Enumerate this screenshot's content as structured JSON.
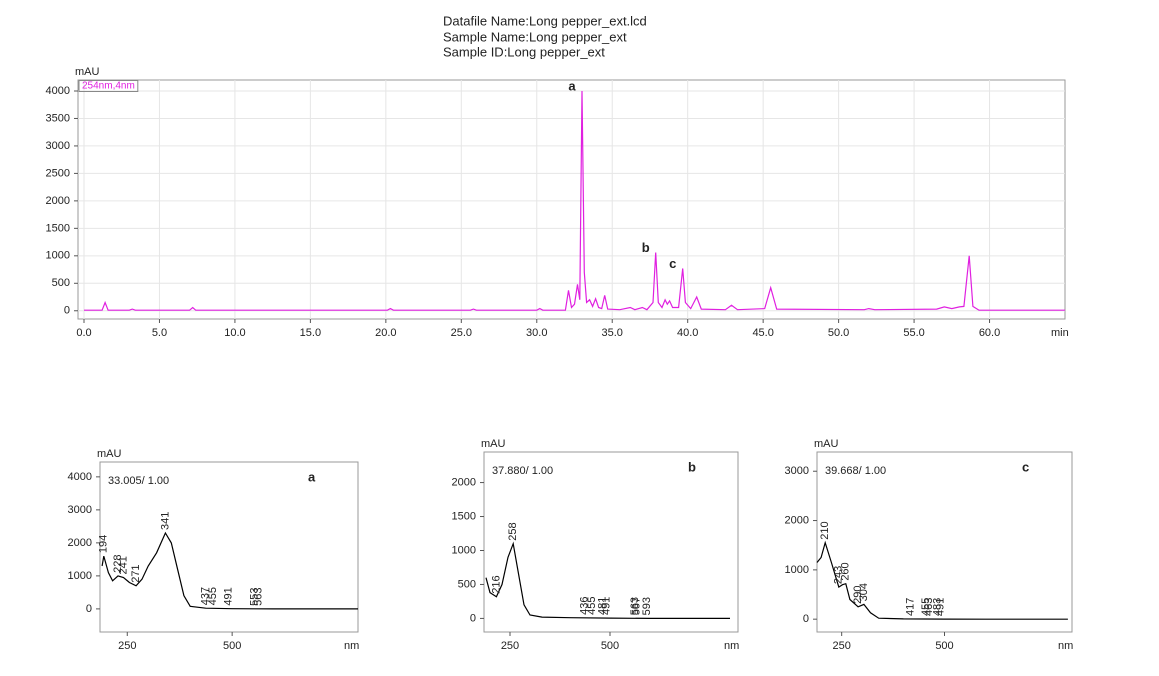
{
  "header": {
    "lines": [
      "Datafile Name:Long pepper_ext.lcd",
      "Sample Name:Long pepper_ext",
      "Sample ID:Long pepper_ext"
    ]
  },
  "chart_data": [
    {
      "type": "line",
      "y_label": "mAU",
      "x_label": "min",
      "grid": true,
      "xlim": [
        0,
        65
      ],
      "ylim": [
        -150,
        4200
      ],
      "xticks": [
        {
          "value": 0,
          "label": "0.0"
        },
        {
          "value": 5,
          "label": "5.0"
        },
        {
          "value": 10,
          "label": "10.0"
        },
        {
          "value": 15,
          "label": "15.0"
        },
        {
          "value": 20,
          "label": "20.0"
        },
        {
          "value": 25,
          "label": "25.0"
        },
        {
          "value": 30,
          "label": "30.0"
        },
        {
          "value": 35,
          "label": "35.0"
        },
        {
          "value": 40,
          "label": "40.0"
        },
        {
          "value": 45,
          "label": "45.0"
        },
        {
          "value": 50,
          "label": "50.0"
        },
        {
          "value": 55,
          "label": "55.0"
        },
        {
          "value": 60,
          "label": "60.0"
        }
      ],
      "yticks": [
        0,
        500,
        1000,
        1500,
        2000,
        2500,
        3000,
        3500,
        4000
      ],
      "x": [
        0,
        1.2,
        1.4,
        1.6,
        3,
        3.2,
        3.4,
        7.0,
        7.2,
        7.4,
        20.1,
        20.3,
        20.5,
        25.6,
        25.8,
        26.0,
        30.0,
        30.2,
        30.4,
        31.9,
        32.1,
        32.3,
        32.5,
        32.7,
        32.85,
        33.0,
        33.15,
        33.3,
        33.5,
        33.7,
        33.9,
        34.1,
        34.3,
        34.5,
        34.7,
        35.5,
        36.2,
        36.5,
        37.0,
        37.3,
        37.7,
        37.88,
        38.05,
        38.3,
        38.5,
        38.65,
        38.8,
        39.0,
        39.4,
        39.67,
        39.85,
        40.2,
        40.6,
        40.9,
        42.5,
        42.9,
        43.3,
        45.1,
        45.5,
        45.9,
        51.7,
        52.0,
        52.4,
        56.5,
        57.0,
        57.5,
        58.0,
        58.3,
        58.65,
        58.9,
        59.3,
        65
      ],
      "series": [
        {
          "name": "254nm,4nm",
          "color": "#e020e0",
          "values": [
            10,
            10,
            150,
            10,
            10,
            30,
            10,
            10,
            60,
            10,
            10,
            40,
            10,
            10,
            30,
            10,
            10,
            40,
            10,
            10,
            370,
            60,
            120,
            480,
            200,
            4000,
            700,
            150,
            200,
            80,
            220,
            60,
            40,
            280,
            30,
            20,
            60,
            20,
            60,
            20,
            150,
            1060,
            150,
            60,
            200,
            120,
            180,
            60,
            60,
            770,
            150,
            40,
            250,
            30,
            20,
            100,
            20,
            40,
            420,
            30,
            20,
            40,
            20,
            30,
            70,
            40,
            70,
            80,
            1000,
            80,
            10,
            10
          ]
        }
      ],
      "annotations": [
        {
          "text": "a",
          "x": 33.0,
          "y": 4000
        },
        {
          "text": "b",
          "x": 37.88,
          "y": 1060
        },
        {
          "text": "c",
          "x": 39.67,
          "y": 770
        }
      ]
    },
    {
      "type": "line",
      "y_label": "mAU",
      "x_label": "nm",
      "subtitle": "33.005/ 1.00",
      "label": "a",
      "grid": false,
      "xlim": [
        185,
        800
      ],
      "ylim": [
        -700,
        4450
      ],
      "xticks": [
        250,
        500
      ],
      "yticks": [
        0,
        1000,
        2000,
        3000,
        4000
      ],
      "x": [
        190,
        194,
        205,
        215,
        228,
        241,
        255,
        271,
        285,
        300,
        320,
        341,
        355,
        370,
        385,
        400,
        437,
        500,
        600,
        800
      ],
      "series": [
        {
          "color": "#000000",
          "values": [
            1300,
            1600,
            1100,
            850,
            1000,
            950,
            800,
            700,
            900,
            1300,
            1700,
            2300,
            2000,
            1200,
            400,
            80,
            20,
            5,
            0,
            0
          ]
        }
      ],
      "peaks": [
        194,
        228,
        241,
        271,
        341,
        437,
        455,
        491,
        553,
        563
      ]
    },
    {
      "type": "line",
      "y_label": "mAU",
      "x_label": "nm",
      "subtitle": "37.880/ 1.00",
      "label": "b",
      "grid": false,
      "xlim": [
        185,
        820
      ],
      "ylim": [
        -200,
        2450
      ],
      "xticks": [
        250,
        500
      ],
      "yticks": [
        0,
        500,
        1000,
        1500,
        2000
      ],
      "x": [
        190,
        200,
        216,
        230,
        245,
        258,
        270,
        285,
        300,
        330,
        400,
        500,
        600,
        800
      ],
      "series": [
        {
          "color": "#000000",
          "values": [
            600,
            380,
            320,
            500,
            900,
            1100,
            700,
            200,
            50,
            20,
            10,
            5,
            0,
            0
          ]
        }
      ],
      "peaks": [
        216,
        258,
        436,
        455,
        481,
        491,
        563,
        567,
        593
      ]
    },
    {
      "type": "line",
      "y_label": "mAU",
      "x_label": "nm",
      "subtitle": "39.668/ 1.00",
      "label": "c",
      "grid": false,
      "xlim": [
        190,
        810
      ],
      "ylim": [
        -260,
        3390
      ],
      "xticks": [
        250,
        500
      ],
      "yticks": [
        0,
        1000,
        2000,
        3000
      ],
      "x": [
        190,
        200,
        210,
        225,
        243,
        252,
        260,
        270,
        290,
        304,
        320,
        340,
        400,
        500,
        600,
        800
      ],
      "series": [
        {
          "color": "#000000",
          "values": [
            1150,
            1250,
            1550,
            1150,
            650,
            700,
            720,
            400,
            250,
            300,
            130,
            20,
            5,
            2,
            0,
            0
          ]
        }
      ],
      "peaks": [
        210,
        243,
        260,
        290,
        304,
        417,
        455,
        463,
        483,
        491
      ]
    }
  ]
}
